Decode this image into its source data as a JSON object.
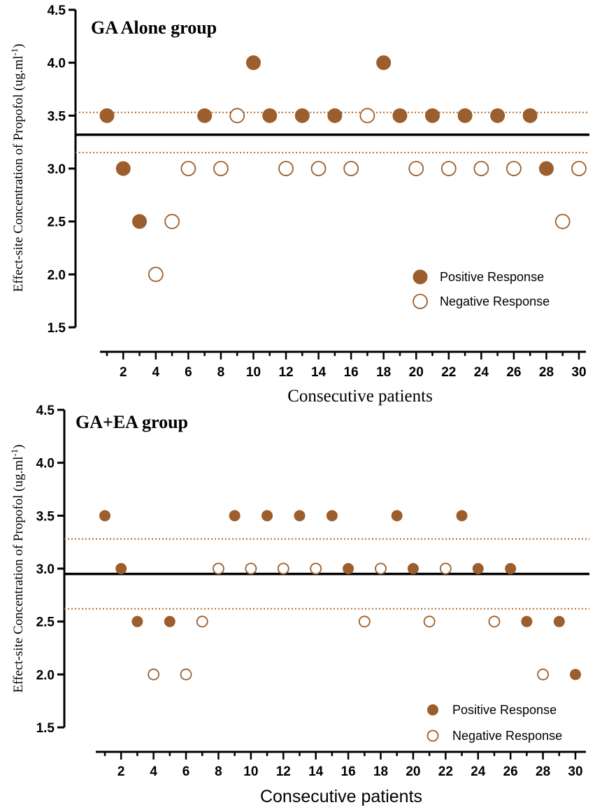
{
  "chart_data": [
    {
      "type": "scatter",
      "title": "GA Alone group",
      "xlabel": "Consecutive patients",
      "ylabel": "Effect-site Concentration of Propofol (ug.ml",
      "ylabel_sup": "-1",
      "ylabel_close": ")",
      "ylim": [
        1.5,
        4.5
      ],
      "xlim": [
        1,
        30
      ],
      "yticks": [
        "1.5",
        "2.0",
        "2.5",
        "3.0",
        "3.5",
        "4.0",
        "4.5"
      ],
      "xticks": [
        "2",
        "4",
        "6",
        "8",
        "10",
        "12",
        "14",
        "16",
        "18",
        "20",
        "22",
        "24",
        "26",
        "28",
        "30"
      ],
      "legend": {
        "positive": "Positive Response",
        "negative": "Negative Response"
      },
      "mean": 3.32,
      "ci": [
        3.15,
        3.53
      ],
      "points": [
        {
          "x": 1,
          "y": 3.5,
          "r": "positive"
        },
        {
          "x": 2,
          "y": 3.0,
          "r": "positive"
        },
        {
          "x": 3,
          "y": 2.5,
          "r": "positive"
        },
        {
          "x": 4,
          "y": 2.0,
          "r": "negative"
        },
        {
          "x": 5,
          "y": 2.5,
          "r": "negative"
        },
        {
          "x": 6,
          "y": 3.0,
          "r": "negative"
        },
        {
          "x": 7,
          "y": 3.5,
          "r": "positive"
        },
        {
          "x": 8,
          "y": 3.0,
          "r": "negative"
        },
        {
          "x": 9,
          "y": 3.5,
          "r": "negative"
        },
        {
          "x": 10,
          "y": 4.0,
          "r": "positive"
        },
        {
          "x": 11,
          "y": 3.5,
          "r": "positive"
        },
        {
          "x": 12,
          "y": 3.0,
          "r": "negative"
        },
        {
          "x": 13,
          "y": 3.5,
          "r": "positive"
        },
        {
          "x": 14,
          "y": 3.0,
          "r": "negative"
        },
        {
          "x": 15,
          "y": 3.5,
          "r": "positive"
        },
        {
          "x": 16,
          "y": 3.0,
          "r": "negative"
        },
        {
          "x": 17,
          "y": 3.5,
          "r": "negative"
        },
        {
          "x": 18,
          "y": 4.0,
          "r": "positive"
        },
        {
          "x": 19,
          "y": 3.5,
          "r": "positive"
        },
        {
          "x": 20,
          "y": 3.0,
          "r": "negative"
        },
        {
          "x": 21,
          "y": 3.5,
          "r": "positive"
        },
        {
          "x": 22,
          "y": 3.0,
          "r": "negative"
        },
        {
          "x": 23,
          "y": 3.5,
          "r": "positive"
        },
        {
          "x": 24,
          "y": 3.0,
          "r": "negative"
        },
        {
          "x": 25,
          "y": 3.5,
          "r": "positive"
        },
        {
          "x": 26,
          "y": 3.0,
          "r": "negative"
        },
        {
          "x": 27,
          "y": 3.5,
          "r": "positive"
        },
        {
          "x": 28,
          "y": 3.0,
          "r": "positive"
        },
        {
          "x": 29,
          "y": 2.5,
          "r": "negative"
        },
        {
          "x": 30,
          "y": 3.0,
          "r": "negative"
        }
      ]
    },
    {
      "type": "scatter",
      "title": "GA+EA group",
      "xlabel": "Consecutive patients",
      "ylabel": "Effect-site Concentration of Propofol (ug.ml",
      "ylabel_sup": "-1",
      "ylabel_close": ")",
      "ylim": [
        1.5,
        4.5
      ],
      "xlim": [
        1,
        30
      ],
      "yticks": [
        "1.5",
        "2.0",
        "2.5",
        "3.0",
        "3.5",
        "4.0",
        "4.5"
      ],
      "xticks": [
        "2",
        "4",
        "6",
        "8",
        "10",
        "12",
        "14",
        "16",
        "18",
        "20",
        "22",
        "24",
        "26",
        "28",
        "30"
      ],
      "legend": {
        "positive": "Positive Response",
        "negative": "Negative Response"
      },
      "mean": 2.95,
      "ci": [
        2.62,
        3.28
      ],
      "points": [
        {
          "x": 1,
          "y": 3.5,
          "r": "positive"
        },
        {
          "x": 2,
          "y": 3.0,
          "r": "positive"
        },
        {
          "x": 3,
          "y": 2.5,
          "r": "positive"
        },
        {
          "x": 4,
          "y": 2.0,
          "r": "negative"
        },
        {
          "x": 5,
          "y": 2.5,
          "r": "positive"
        },
        {
          "x": 6,
          "y": 2.0,
          "r": "negative"
        },
        {
          "x": 7,
          "y": 2.5,
          "r": "negative"
        },
        {
          "x": 8,
          "y": 3.0,
          "r": "negative"
        },
        {
          "x": 9,
          "y": 3.5,
          "r": "positive"
        },
        {
          "x": 10,
          "y": 3.0,
          "r": "negative"
        },
        {
          "x": 11,
          "y": 3.5,
          "r": "positive"
        },
        {
          "x": 12,
          "y": 3.0,
          "r": "negative"
        },
        {
          "x": 13,
          "y": 3.5,
          "r": "positive"
        },
        {
          "x": 14,
          "y": 3.0,
          "r": "negative"
        },
        {
          "x": 15,
          "y": 3.5,
          "r": "positive"
        },
        {
          "x": 16,
          "y": 3.0,
          "r": "positive"
        },
        {
          "x": 17,
          "y": 2.5,
          "r": "negative"
        },
        {
          "x": 18,
          "y": 3.0,
          "r": "negative"
        },
        {
          "x": 19,
          "y": 3.5,
          "r": "positive"
        },
        {
          "x": 20,
          "y": 3.0,
          "r": "positive"
        },
        {
          "x": 21,
          "y": 2.5,
          "r": "negative"
        },
        {
          "x": 22,
          "y": 3.0,
          "r": "negative"
        },
        {
          "x": 23,
          "y": 3.5,
          "r": "positive"
        },
        {
          "x": 24,
          "y": 3.0,
          "r": "positive"
        },
        {
          "x": 25,
          "y": 2.5,
          "r": "negative"
        },
        {
          "x": 26,
          "y": 3.0,
          "r": "positive"
        },
        {
          "x": 27,
          "y": 2.5,
          "r": "positive"
        },
        {
          "x": 28,
          "y": 2.0,
          "r": "negative"
        },
        {
          "x": 29,
          "y": 2.5,
          "r": "positive"
        },
        {
          "x": 30,
          "y": 2.0,
          "r": "positive"
        }
      ]
    }
  ],
  "colors": {
    "marker": "#9b5e2c",
    "ci_line": "#b06a2a",
    "mean_line": "#000000"
  }
}
